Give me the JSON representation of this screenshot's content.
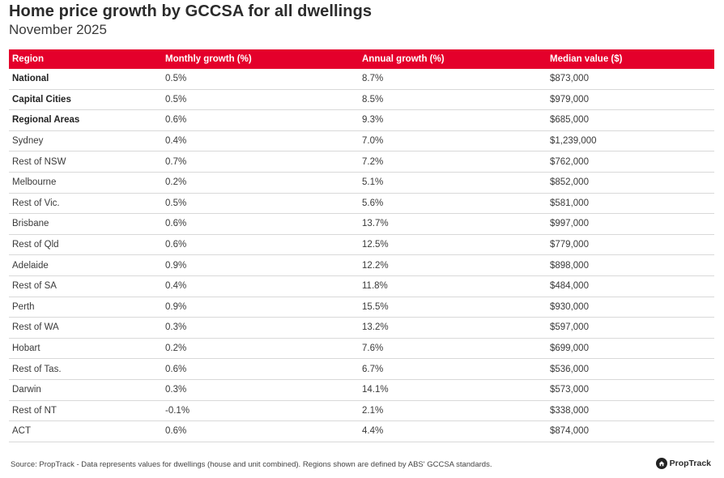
{
  "title": "Home price growth by GCCSA for all dwellings",
  "subtitle": "November 2025",
  "columns": [
    "Region",
    "Monthly growth (%)",
    "Annual growth (%)",
    "Median value ($)"
  ],
  "rows": [
    {
      "region": "National",
      "monthly": "0.5%",
      "annual": "8.7%",
      "median": "$873,000",
      "bold": true
    },
    {
      "region": "Capital Cities",
      "monthly": "0.5%",
      "annual": "8.5%",
      "median": "$979,000",
      "bold": true
    },
    {
      "region": "Regional Areas",
      "monthly": "0.6%",
      "annual": "9.3%",
      "median": "$685,000",
      "bold": true
    },
    {
      "region": "Sydney",
      "monthly": "0.4%",
      "annual": "7.0%",
      "median": "$1,239,000",
      "bold": false
    },
    {
      "region": "Rest of NSW",
      "monthly": "0.7%",
      "annual": "7.2%",
      "median": "$762,000",
      "bold": false
    },
    {
      "region": "Melbourne",
      "monthly": "0.2%",
      "annual": "5.1%",
      "median": "$852,000",
      "bold": false
    },
    {
      "region": "Rest of Vic.",
      "monthly": "0.5%",
      "annual": "5.6%",
      "median": "$581,000",
      "bold": false
    },
    {
      "region": "Brisbane",
      "monthly": "0.6%",
      "annual": "13.7%",
      "median": "$997,000",
      "bold": false
    },
    {
      "region": "Rest of Qld",
      "monthly": "0.6%",
      "annual": "12.5%",
      "median": "$779,000",
      "bold": false
    },
    {
      "region": "Adelaide",
      "monthly": "0.9%",
      "annual": "12.2%",
      "median": "$898,000",
      "bold": false
    },
    {
      "region": "Rest of SA",
      "monthly": "0.4%",
      "annual": "11.8%",
      "median": "$484,000",
      "bold": false
    },
    {
      "region": "Perth",
      "monthly": "0.9%",
      "annual": "15.5%",
      "median": "$930,000",
      "bold": false
    },
    {
      "region": "Rest of WA",
      "monthly": "0.3%",
      "annual": "13.2%",
      "median": "$597,000",
      "bold": false
    },
    {
      "region": "Hobart",
      "monthly": "0.2%",
      "annual": "7.6%",
      "median": "$699,000",
      "bold": false
    },
    {
      "region": "Rest of Tas.",
      "monthly": "0.6%",
      "annual": "6.7%",
      "median": "$536,000",
      "bold": false
    },
    {
      "region": "Darwin",
      "monthly": "0.3%",
      "annual": "14.1%",
      "median": "$573,000",
      "bold": false
    },
    {
      "region": "Rest of NT",
      "monthly": "-0.1%",
      "annual": "2.1%",
      "median": "$338,000",
      "bold": false
    },
    {
      "region": "ACT",
      "monthly": "0.6%",
      "annual": "4.4%",
      "median": "$874,000",
      "bold": false
    }
  ],
  "footer": "Source: PropTrack - Data represents values for dwellings (house and unit combined). Regions shown are defined by ABS' GCCSA standards.",
  "brand": {
    "name": "PropTrack",
    "icon": "proptrack-logo-icon"
  },
  "colors": {
    "header_bg": "#e4002b",
    "header_text": "#ffffff",
    "divider": "#d9d9d9"
  }
}
